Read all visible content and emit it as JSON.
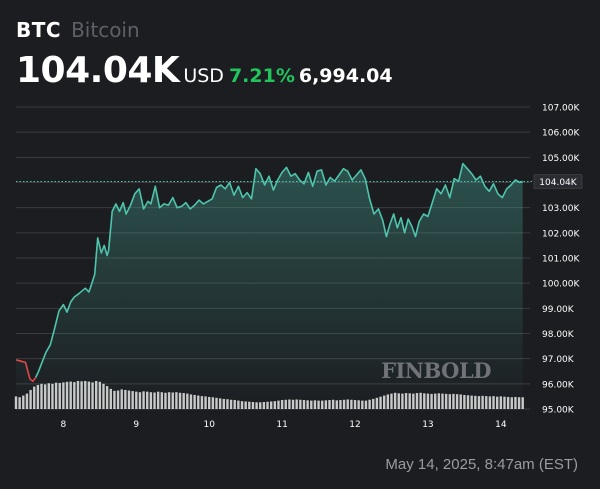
{
  "header": {
    "ticker": "BTC",
    "name": "Bitcoin",
    "price": "104.04K",
    "currency": "USD",
    "change_pct": "7.21%",
    "change_abs": "6,994.04"
  },
  "watermark": "FINBOLD",
  "footer": {
    "timestamp": "May 14, 2025, 8:47am (EST)"
  },
  "colors": {
    "background": "#1c1d21",
    "line": "#4fc4ac",
    "line_down": "#e04848",
    "positive": "#21c55d",
    "volume": "#d9d9d9",
    "grid": "#3a3c42"
  },
  "chart_data": {
    "type": "line",
    "title": "",
    "xlabel": "",
    "ylabel": "",
    "x_ticks": [
      "8",
      "9",
      "10",
      "11",
      "12",
      "13",
      "14"
    ],
    "x_tick_values": [
      8,
      9,
      10,
      11,
      12,
      13,
      14
    ],
    "xlim": [
      7.35,
      14.4
    ],
    "ylim": [
      95.0,
      107.0
    ],
    "y_ticks": [
      "95.00K",
      "96.00K",
      "97.00K",
      "98.00K",
      "99.00K",
      "100.00K",
      "101.00K",
      "102.00K",
      "103.00K",
      "104.00K",
      "105.00K",
      "106.00K",
      "107.00K"
    ],
    "y_tick_values": [
      95,
      96,
      97,
      98,
      99,
      100,
      101,
      102,
      103,
      104,
      105,
      106,
      107
    ],
    "current_value": 104.04,
    "current_label": "104.04K",
    "red_until": 7.6,
    "series": [
      {
        "x": [
          7.35,
          7.42,
          7.48,
          7.54,
          7.58,
          7.62,
          7.66,
          7.7,
          7.76,
          7.82,
          7.88,
          7.94,
          8.0,
          8.05,
          8.1,
          8.15,
          8.22,
          8.3,
          8.35,
          8.38,
          8.43,
          8.47,
          8.52,
          8.56,
          8.6,
          8.62,
          8.67,
          8.72,
          8.77,
          8.82,
          8.86,
          8.92,
          8.98,
          9.04,
          9.1,
          9.16,
          9.2,
          9.26,
          9.32,
          9.38,
          9.44,
          9.5,
          9.56,
          9.62,
          9.68,
          9.74,
          9.8,
          9.86,
          9.92,
          9.98,
          10.04,
          10.1,
          10.16,
          10.22,
          10.28,
          10.34,
          10.4,
          10.46,
          10.52,
          10.58,
          10.64,
          10.7,
          10.76,
          10.82,
          10.88,
          10.94,
          11.0,
          11.06,
          11.12,
          11.18,
          11.24,
          11.3,
          11.36,
          11.42,
          11.48,
          11.54,
          11.6,
          11.66,
          11.72,
          11.78,
          11.84,
          11.9,
          11.96,
          12.02,
          12.08,
          12.14,
          12.2,
          12.26,
          12.32,
          12.38,
          12.43,
          12.48,
          12.53,
          12.58,
          12.63,
          12.68,
          12.73,
          12.78,
          12.83,
          12.88,
          12.94,
          13.0,
          13.06,
          13.12,
          13.18,
          13.24,
          13.3,
          13.36,
          13.42,
          13.48,
          13.54,
          13.6,
          13.66,
          13.72,
          13.78,
          13.84,
          13.9,
          13.96,
          14.02,
          14.08,
          14.14,
          14.2,
          14.26,
          14.3
        ],
        "values": [
          96.95,
          96.9,
          96.85,
          96.2,
          96.1,
          96.25,
          96.5,
          96.8,
          97.25,
          97.55,
          98.2,
          98.9,
          99.15,
          98.85,
          99.25,
          99.45,
          99.6,
          99.8,
          99.65,
          99.9,
          100.35,
          101.8,
          101.2,
          101.5,
          101.1,
          101.3,
          102.85,
          103.15,
          102.85,
          103.2,
          102.75,
          103.1,
          103.55,
          103.75,
          102.95,
          103.25,
          103.15,
          103.85,
          103.0,
          103.15,
          103.1,
          103.4,
          103.0,
          103.05,
          103.2,
          102.95,
          103.1,
          103.3,
          103.15,
          103.25,
          103.35,
          103.8,
          103.9,
          103.75,
          104.0,
          103.5,
          103.85,
          103.4,
          103.6,
          103.35,
          104.55,
          104.35,
          103.9,
          104.25,
          103.7,
          104.1,
          104.4,
          104.6,
          104.25,
          104.35,
          104.1,
          103.95,
          104.4,
          103.85,
          104.45,
          104.5,
          103.9,
          104.2,
          104.05,
          104.3,
          104.55,
          104.45,
          104.1,
          104.3,
          104.5,
          104.15,
          103.35,
          102.75,
          102.95,
          102.5,
          101.85,
          102.35,
          102.75,
          102.2,
          102.6,
          102.0,
          102.55,
          102.25,
          101.85,
          102.45,
          102.75,
          102.65,
          103.2,
          103.75,
          103.55,
          103.9,
          103.4,
          104.15,
          104.05,
          104.75,
          104.55,
          104.35,
          104.1,
          104.25,
          103.85,
          103.65,
          103.95,
          103.55,
          103.4,
          103.75,
          103.9,
          104.1,
          104.0,
          104.04
        ]
      }
    ],
    "volume_x": [
      7.35,
      7.4,
      7.45,
      7.5,
      7.55,
      7.6,
      7.65,
      7.7,
      7.75,
      7.8,
      7.85,
      7.9,
      7.95,
      8.0,
      8.05,
      8.1,
      8.15,
      8.2,
      8.25,
      8.3,
      8.35,
      8.4,
      8.45,
      8.5,
      8.55,
      8.6,
      8.65,
      8.7,
      8.75,
      8.8,
      8.85,
      8.9,
      8.95,
      9.0,
      9.05,
      9.1,
      9.15,
      9.2,
      9.25,
      9.3,
      9.35,
      9.4,
      9.45,
      9.5,
      9.55,
      9.6,
      9.65,
      9.7,
      9.75,
      9.8,
      9.85,
      9.9,
      9.95,
      10.0,
      10.05,
      10.1,
      10.15,
      10.2,
      10.25,
      10.3,
      10.35,
      10.4,
      10.45,
      10.5,
      10.55,
      10.6,
      10.65,
      10.7,
      10.75,
      10.8,
      10.85,
      10.9,
      10.95,
      11.0,
      11.05,
      11.1,
      11.15,
      11.2,
      11.25,
      11.3,
      11.35,
      11.4,
      11.45,
      11.5,
      11.55,
      11.6,
      11.65,
      11.7,
      11.75,
      11.8,
      11.85,
      11.9,
      11.95,
      12.0,
      12.05,
      12.1,
      12.15,
      12.2,
      12.25,
      12.3,
      12.35,
      12.4,
      12.45,
      12.5,
      12.55,
      12.6,
      12.65,
      12.7,
      12.75,
      12.8,
      12.85,
      12.9,
      12.95,
      13.0,
      13.05,
      13.1,
      13.15,
      13.2,
      13.25,
      13.3,
      13.35,
      13.4,
      13.45,
      13.5,
      13.55,
      13.6,
      13.65,
      13.7,
      13.75,
      13.8,
      13.85,
      13.9,
      13.95,
      14.0,
      14.05,
      14.1,
      14.15,
      14.2,
      14.25,
      14.3
    ],
    "volume": [
      0.45,
      0.42,
      0.48,
      0.55,
      0.68,
      0.8,
      0.86,
      0.9,
      0.88,
      0.92,
      0.9,
      0.94,
      0.93,
      0.95,
      0.97,
      0.98,
      0.96,
      1.0,
      0.99,
      1.0,
      0.98,
      0.95,
      1.0,
      0.97,
      0.9,
      0.82,
      0.72,
      0.65,
      0.66,
      0.7,
      0.68,
      0.66,
      0.64,
      0.62,
      0.6,
      0.63,
      0.62,
      0.6,
      0.59,
      0.62,
      0.6,
      0.58,
      0.6,
      0.59,
      0.6,
      0.58,
      0.57,
      0.55,
      0.52,
      0.5,
      0.48,
      0.46,
      0.45,
      0.43,
      0.42,
      0.4,
      0.38,
      0.36,
      0.35,
      0.33,
      0.32,
      0.3,
      0.28,
      0.27,
      0.26,
      0.25,
      0.24,
      0.24,
      0.25,
      0.26,
      0.27,
      0.28,
      0.3,
      0.32,
      0.33,
      0.34,
      0.33,
      0.34,
      0.33,
      0.32,
      0.31,
      0.3,
      0.31,
      0.3,
      0.3,
      0.31,
      0.32,
      0.33,
      0.31,
      0.32,
      0.33,
      0.34,
      0.33,
      0.32,
      0.31,
      0.3,
      0.3,
      0.33,
      0.36,
      0.4,
      0.44,
      0.48,
      0.52,
      0.55,
      0.58,
      0.56,
      0.55,
      0.57,
      0.56,
      0.55,
      0.57,
      0.58,
      0.56,
      0.55,
      0.54,
      0.55,
      0.56,
      0.55,
      0.54,
      0.53,
      0.54,
      0.53,
      0.52,
      0.5,
      0.49,
      0.48,
      0.47,
      0.46,
      0.47,
      0.46,
      0.45,
      0.46,
      0.44,
      0.45,
      0.44,
      0.43,
      0.42,
      0.43,
      0.42,
      0.42
    ]
  }
}
